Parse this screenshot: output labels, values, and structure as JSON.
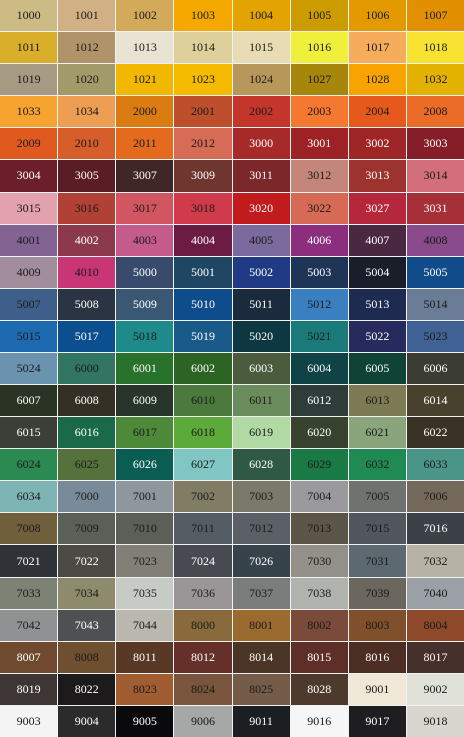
{
  "rows": [
    [
      {
        "code": "1000",
        "color": "#cdbb85"
      },
      {
        "code": "1001",
        "color": "#d0b084"
      },
      {
        "code": "1002",
        "color": "#d2aa5a"
      },
      {
        "code": "1003",
        "color": "#f5a900"
      },
      {
        "code": "1004",
        "color": "#e3a300"
      },
      {
        "code": "1005",
        "color": "#cc9c00"
      },
      {
        "code": "1006",
        "color": "#e29a00"
      },
      {
        "code": "1007",
        "color": "#e29000"
      }
    ],
    [
      {
        "code": "1011",
        "color": "#d9ae2a"
      },
      {
        "code": "1012",
        "color": "#b09368"
      },
      {
        "code": "1013",
        "color": "#e8e3d3"
      },
      {
        "code": "1014",
        "color": "#ded09b"
      },
      {
        "code": "1015",
        "color": "#e8dcb4"
      },
      {
        "code": "1016",
        "color": "#f0ef3c"
      },
      {
        "code": "1017",
        "color": "#f5ad5c"
      },
      {
        "code": "1018",
        "color": "#f8e232"
      }
    ],
    [
      {
        "code": "1019",
        "color": "#a69a83"
      },
      {
        "code": "1020",
        "color": "#a39a6a"
      },
      {
        "code": "1021",
        "color": "#f2b800"
      },
      {
        "code": "1023",
        "color": "#f5bb00"
      },
      {
        "code": "1024",
        "color": "#b8985a"
      },
      {
        "code": "1027",
        "color": "#a7860c"
      },
      {
        "code": "1028",
        "color": "#f8a400"
      },
      {
        "code": "1032",
        "color": "#e3b200"
      }
    ],
    [
      {
        "code": "1033",
        "color": "#f7a330"
      },
      {
        "code": "1034",
        "color": "#ee9e52"
      },
      {
        "code": "2000",
        "color": "#db7c13"
      },
      {
        "code": "2001",
        "color": "#bd4f2c"
      },
      {
        "code": "2002",
        "color": "#c4362c"
      },
      {
        "code": "2003",
        "color": "#f47830"
      },
      {
        "code": "2004",
        "color": "#e55a1c"
      },
      {
        "code": "2008",
        "color": "#ea6c26"
      }
    ],
    [
      {
        "code": "2009",
        "color": "#e05a1f"
      },
      {
        "code": "2010",
        "color": "#d55e2a"
      },
      {
        "code": "2011",
        "color": "#e46b1d"
      },
      {
        "code": "2012",
        "color": "#d66b56"
      },
      {
        "code": "3000",
        "color": "#a72a2a"
      },
      {
        "code": "3001",
        "color": "#9c2226"
      },
      {
        "code": "3002",
        "color": "#9f2627"
      },
      {
        "code": "3003",
        "color": "#861e29"
      }
    ],
    [
      {
        "code": "3004",
        "color": "#6a1f2b"
      },
      {
        "code": "3005",
        "color": "#5a1c25"
      },
      {
        "code": "3007",
        "color": "#412627"
      },
      {
        "code": "3009",
        "color": "#6f3630"
      },
      {
        "code": "3011",
        "color": "#7c282a"
      },
      {
        "code": "3012",
        "color": "#c4867a"
      },
      {
        "code": "3013",
        "color": "#9c332f"
      },
      {
        "code": "3014",
        "color": "#d36f7a"
      }
    ],
    [
      {
        "code": "3015",
        "color": "#e2a1ad"
      },
      {
        "code": "3016",
        "color": "#b14036"
      },
      {
        "code": "3017",
        "color": "#d25562"
      },
      {
        "code": "3018",
        "color": "#cf3b4a"
      },
      {
        "code": "3020",
        "color": "#c11b1e"
      },
      {
        "code": "3022",
        "color": "#d76a56"
      },
      {
        "code": "3027",
        "color": "#b5283c"
      },
      {
        "code": "3031",
        "color": "#a63037"
      }
    ],
    [
      {
        "code": "4001",
        "color": "#826391"
      },
      {
        "code": "4002",
        "color": "#8c3a4b"
      },
      {
        "code": "4003",
        "color": "#c55a8d"
      },
      {
        "code": "4004",
        "color": "#6c1b43"
      },
      {
        "code": "4005",
        "color": "#7b6a9e"
      },
      {
        "code": "4006",
        "color": "#8b2e7e"
      },
      {
        "code": "4007",
        "color": "#4a2841"
      },
      {
        "code": "4008",
        "color": "#8a4b8c"
      }
    ],
    [
      {
        "code": "4009",
        "color": "#a18d9c"
      },
      {
        "code": "4010",
        "color": "#ca3575"
      },
      {
        "code": "5000",
        "color": "#384b6d"
      },
      {
        "code": "5001",
        "color": "#1f4764"
      },
      {
        "code": "5002",
        "color": "#203a85"
      },
      {
        "code": "5003",
        "color": "#1e3558"
      },
      {
        "code": "5004",
        "color": "#1a1d2a"
      },
      {
        "code": "5005",
        "color": "#124b8a"
      }
    ],
    [
      {
        "code": "5007",
        "color": "#3e5f8a"
      },
      {
        "code": "5008",
        "color": "#2a3442"
      },
      {
        "code": "5009",
        "color": "#3a5873"
      },
      {
        "code": "5010",
        "color": "#0e4c8b"
      },
      {
        "code": "5011",
        "color": "#1b2b3d"
      },
      {
        "code": "5012",
        "color": "#3a7fc0"
      },
      {
        "code": "5013",
        "color": "#1e2b50"
      },
      {
        "code": "5014",
        "color": "#6b7c96"
      }
    ],
    [
      {
        "code": "5015",
        "color": "#1d6ab0"
      },
      {
        "code": "5017",
        "color": "#0b4f8f"
      },
      {
        "code": "5018",
        "color": "#1f8a8a"
      },
      {
        "code": "5019",
        "color": "#1a5a89"
      },
      {
        "code": "5020",
        "color": "#0d3842"
      },
      {
        "code": "5021",
        "color": "#1a7a7a"
      },
      {
        "code": "5022",
        "color": "#262a5c"
      },
      {
        "code": "5023",
        "color": "#3f6193"
      }
    ],
    [
      {
        "code": "5024",
        "color": "#6a93b0"
      },
      {
        "code": "6000",
        "color": "#327662"
      },
      {
        "code": "6001",
        "color": "#28722c"
      },
      {
        "code": "6002",
        "color": "#2c6424"
      },
      {
        "code": "6003",
        "color": "#4a5b3e"
      },
      {
        "code": "6004",
        "color": "#0f4346"
      },
      {
        "code": "6005",
        "color": "#0f4336"
      },
      {
        "code": "6006",
        "color": "#3b3c32"
      }
    ],
    [
      {
        "code": "6007",
        "color": "#2b3325"
      },
      {
        "code": "6008",
        "color": "#343025"
      },
      {
        "code": "6009",
        "color": "#27352a"
      },
      {
        "code": "6010",
        "color": "#4c7a3c"
      },
      {
        "code": "6011",
        "color": "#6b8c5c"
      },
      {
        "code": "6012",
        "color": "#2f3d3a"
      },
      {
        "code": "6013",
        "color": "#7c7b53"
      },
      {
        "code": "6014",
        "color": "#48412d"
      }
    ],
    [
      {
        "code": "6015",
        "color": "#3c3f38"
      },
      {
        "code": "6016",
        "color": "#1a6a49"
      },
      {
        "code": "6017",
        "color": "#4c8a3a"
      },
      {
        "code": "6018",
        "color": "#5cab3a"
      },
      {
        "code": "6019",
        "color": "#b0d9a4"
      },
      {
        "code": "6020",
        "color": "#37422f"
      },
      {
        "code": "6021",
        "color": "#8aa57c"
      },
      {
        "code": "6022",
        "color": "#3a3325"
      }
    ],
    [
      {
        "code": "6024",
        "color": "#2a8a52"
      },
      {
        "code": "6025",
        "color": "#56713c"
      },
      {
        "code": "6026",
        "color": "#0b5c52"
      },
      {
        "code": "6027",
        "color": "#80c6c3"
      },
      {
        "code": "6028",
        "color": "#2f5945"
      },
      {
        "code": "6029",
        "color": "#1a7a46"
      },
      {
        "code": "6032",
        "color": "#1f8a54"
      },
      {
        "code": "6033",
        "color": "#4a9488"
      }
    ],
    [
      {
        "code": "6034",
        "color": "#7fb4b5"
      },
      {
        "code": "7000",
        "color": "#798b98"
      },
      {
        "code": "7001",
        "color": "#8e979e"
      },
      {
        "code": "7002",
        "color": "#817d65"
      },
      {
        "code": "7003",
        "color": "#7b7a6a"
      },
      {
        "code": "7004",
        "color": "#9a9a9c"
      },
      {
        "code": "7005",
        "color": "#6e7370"
      },
      {
        "code": "7006",
        "color": "#74695a"
      }
    ],
    [
      {
        "code": "7008",
        "color": "#6f5f3a"
      },
      {
        "code": "7009",
        "color": "#5a5f57"
      },
      {
        "code": "7010",
        "color": "#5a6058"
      },
      {
        "code": "7011",
        "color": "#555d64"
      },
      {
        "code": "7012",
        "color": "#5a6065"
      },
      {
        "code": "7013",
        "color": "#5b5647"
      },
      {
        "code": "7015",
        "color": "#52575e"
      },
      {
        "code": "7016",
        "color": "#3b4147"
      }
    ],
    [
      {
        "code": "7021",
        "color": "#2f3237"
      },
      {
        "code": "7022",
        "color": "#4b4a44"
      },
      {
        "code": "7023",
        "color": "#818078"
      },
      {
        "code": "7024",
        "color": "#474a50"
      },
      {
        "code": "7026",
        "color": "#37434a"
      },
      {
        "code": "7030",
        "color": "#929089"
      },
      {
        "code": "7031",
        "color": "#5d6970"
      },
      {
        "code": "7032",
        "color": "#b6b3a5"
      }
    ],
    [
      {
        "code": "7033",
        "color": "#7c8274"
      },
      {
        "code": "7034",
        "color": "#8e8a6c"
      },
      {
        "code": "7035",
        "color": "#c6cbc6"
      },
      {
        "code": "7036",
        "color": "#9a9697"
      },
      {
        "code": "7037",
        "color": "#7b7d7d"
      },
      {
        "code": "7038",
        "color": "#b0b3ad"
      },
      {
        "code": "7039",
        "color": "#6b665e"
      },
      {
        "code": "7040",
        "color": "#9aa0a5"
      }
    ],
    [
      {
        "code": "7042",
        "color": "#8e9293"
      },
      {
        "code": "7043",
        "color": "#4d5152"
      },
      {
        "code": "7044",
        "color": "#b9b7ae"
      },
      {
        "code": "8000",
        "color": "#896a3c"
      },
      {
        "code": "8001",
        "color": "#9b6a2f"
      },
      {
        "code": "8002",
        "color": "#7a4a3a"
      },
      {
        "code": "8003",
        "color": "#80502c"
      },
      {
        "code": "8004",
        "color": "#8f4a2c"
      }
    ],
    [
      {
        "code": "8007",
        "color": "#6f4a2e"
      },
      {
        "code": "8008",
        "color": "#6e5031"
      },
      {
        "code": "8011",
        "color": "#5a3826"
      },
      {
        "code": "8012",
        "color": "#66302a"
      },
      {
        "code": "8014",
        "color": "#4a3526"
      },
      {
        "code": "8015",
        "color": "#5e2f28"
      },
      {
        "code": "8016",
        "color": "#4c2e24"
      },
      {
        "code": "8017",
        "color": "#45302b"
      }
    ],
    [
      {
        "code": "8019",
        "color": "#3d3635"
      },
      {
        "code": "8022",
        "color": "#1c1a1b"
      },
      {
        "code": "8023",
        "color": "#a15d32"
      },
      {
        "code": "8024",
        "color": "#79553d"
      },
      {
        "code": "8025",
        "color": "#755c49"
      },
      {
        "code": "8028",
        "color": "#4e3a2c"
      },
      {
        "code": "9001",
        "color": "#f0e8d7"
      },
      {
        "code": "9002",
        "color": "#e0e1d8"
      }
    ],
    [
      {
        "code": "9003",
        "color": "#f4f4f4"
      },
      {
        "code": "9004",
        "color": "#2b2b2c"
      },
      {
        "code": "9005",
        "color": "#0a0a0c"
      },
      {
        "code": "9006",
        "color": "#a5a8a6"
      },
      {
        "code": "9011",
        "color": "#1c1f22"
      },
      {
        "code": "9016",
        "color": "#f6f6f6"
      },
      {
        "code": "9017",
        "color": "#1e1e20"
      },
      {
        "code": "9018",
        "color": "#d7d7d0"
      }
    ]
  ]
}
